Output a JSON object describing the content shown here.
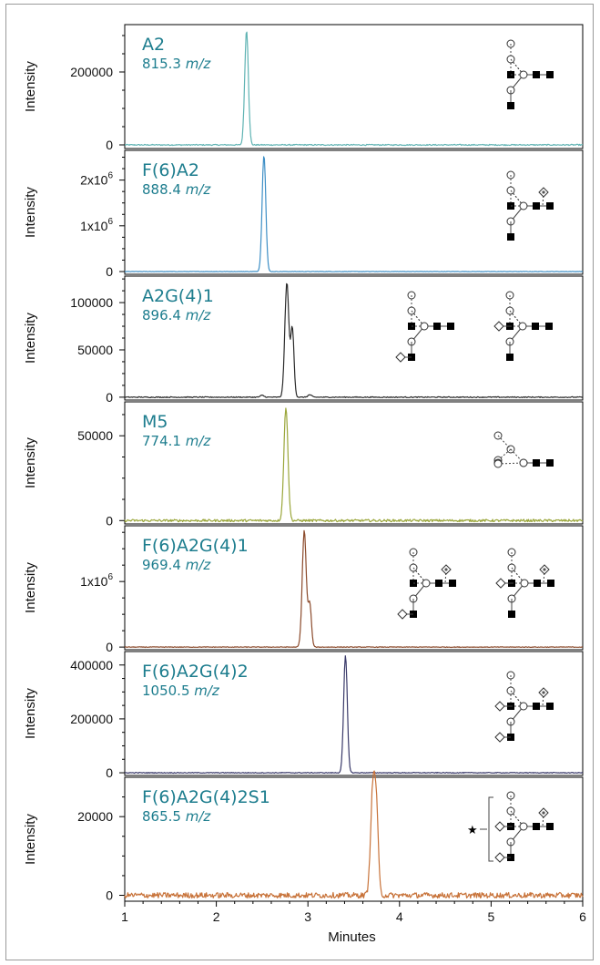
{
  "chart_data": {
    "type": "line",
    "xlabel": "Minutes",
    "xlim": [
      1,
      6
    ],
    "xticks": [
      1,
      2,
      3,
      4,
      5,
      6
    ],
    "grid": false,
    "panels": [
      {
        "name": "A2",
        "mz_value": "815.3",
        "mz_unit": "m/z",
        "ylabel": "Intensity",
        "color": "#5fb3b3",
        "ylim": [
          -10000,
          330000
        ],
        "yticks": [
          {
            "value": 0,
            "label": "0"
          },
          {
            "value": 200000,
            "label": "200000"
          }
        ],
        "baseline_noise": 1500,
        "peaks": [
          {
            "rt": 2.33,
            "height": 315000,
            "width": 0.02
          }
        ],
        "glycan": "A2"
      },
      {
        "name": "F(6)A2",
        "mz_value": "888.4",
        "mz_unit": "m/z",
        "ylabel": "Intensity",
        "color": "#3e8fc6",
        "ylim": [
          -60000,
          2650000
        ],
        "yticks": [
          {
            "value": 0,
            "label": "0"
          },
          {
            "value": 1000000,
            "label": "1x10",
            "sup": "6"
          },
          {
            "value": 2000000,
            "label": "2x10",
            "sup": "6"
          }
        ],
        "baseline_noise": 5000,
        "peaks": [
          {
            "rt": 2.52,
            "height": 2550000,
            "width": 0.02
          }
        ],
        "glycan": "F6A2"
      },
      {
        "name": "A2G(4)1",
        "mz_value": "896.4",
        "mz_unit": "m/z",
        "ylabel": "Intensity",
        "color": "#2b2b2b",
        "ylim": [
          -3000,
          128000
        ],
        "yticks": [
          {
            "value": 0,
            "label": "0"
          },
          {
            "value": 50000,
            "label": "50000"
          },
          {
            "value": 100000,
            "label": "100000"
          }
        ],
        "baseline_noise": 500,
        "peaks": [
          {
            "rt": 2.77,
            "height": 121000,
            "width": 0.022
          },
          {
            "rt": 2.83,
            "height": 72000,
            "width": 0.018
          },
          {
            "rt": 2.5,
            "height": 2000,
            "width": 0.02
          },
          {
            "rt": 3.02,
            "height": 2500,
            "width": 0.02
          }
        ],
        "glycan": "A2G1"
      },
      {
        "name": "M5",
        "mz_value": "774.1",
        "mz_unit": "m/z",
        "ylabel": "Intensity",
        "color": "#9aa63a",
        "ylim": [
          -2000,
          70000
        ],
        "yticks": [
          {
            "value": 0,
            "label": "0"
          },
          {
            "value": 50000,
            "label": "50000"
          }
        ],
        "baseline_noise": 700,
        "peaks": [
          {
            "rt": 2.76,
            "height": 67000,
            "width": 0.022
          }
        ],
        "glycan": "M5"
      },
      {
        "name": "F(6)A2G(4)1",
        "mz_value": "969.4",
        "mz_unit": "m/z",
        "ylabel": "Intensity",
        "color": "#8b4a2b",
        "ylim": [
          -40000,
          1850000
        ],
        "yticks": [
          {
            "value": 0,
            "label": "0"
          },
          {
            "value": 1000000,
            "label": "1x10",
            "sup": "6"
          }
        ],
        "baseline_noise": 5000,
        "peaks": [
          {
            "rt": 2.96,
            "height": 1780000,
            "width": 0.022
          },
          {
            "rt": 3.02,
            "height": 650000,
            "width": 0.018
          }
        ],
        "glycan": "F6A2G1"
      },
      {
        "name": "F(6)A2G(4)2",
        "mz_value": "1050.5",
        "mz_unit": "m/z",
        "ylabel": "Intensity",
        "color": "#3a3a6a",
        "ylim": [
          -10000,
          450000
        ],
        "yticks": [
          {
            "value": 0,
            "label": "0"
          },
          {
            "value": 200000,
            "label": "200000"
          },
          {
            "value": 400000,
            "label": "400000"
          }
        ],
        "baseline_noise": 1500,
        "peaks": [
          {
            "rt": 3.41,
            "height": 435000,
            "width": 0.02
          }
        ],
        "glycan": "F6A2G2"
      },
      {
        "name": "F(6)A2G(4)2S1",
        "mz_value": "865.5",
        "mz_unit": "m/z",
        "ylabel": "Intensity",
        "color": "#c8733a",
        "ylim": [
          -1500,
          30000
        ],
        "yticks": [
          {
            "value": 0,
            "label": "0"
          },
          {
            "value": 20000,
            "label": "20000"
          }
        ],
        "baseline_noise": 700,
        "peaks": [
          {
            "rt": 3.71,
            "height": 27500,
            "width": 0.025
          },
          {
            "rt": 3.75,
            "height": 18000,
            "width": 0.02
          }
        ],
        "glycan": "F6A2G2S1"
      }
    ]
  },
  "symbols": {
    "star": "★"
  }
}
